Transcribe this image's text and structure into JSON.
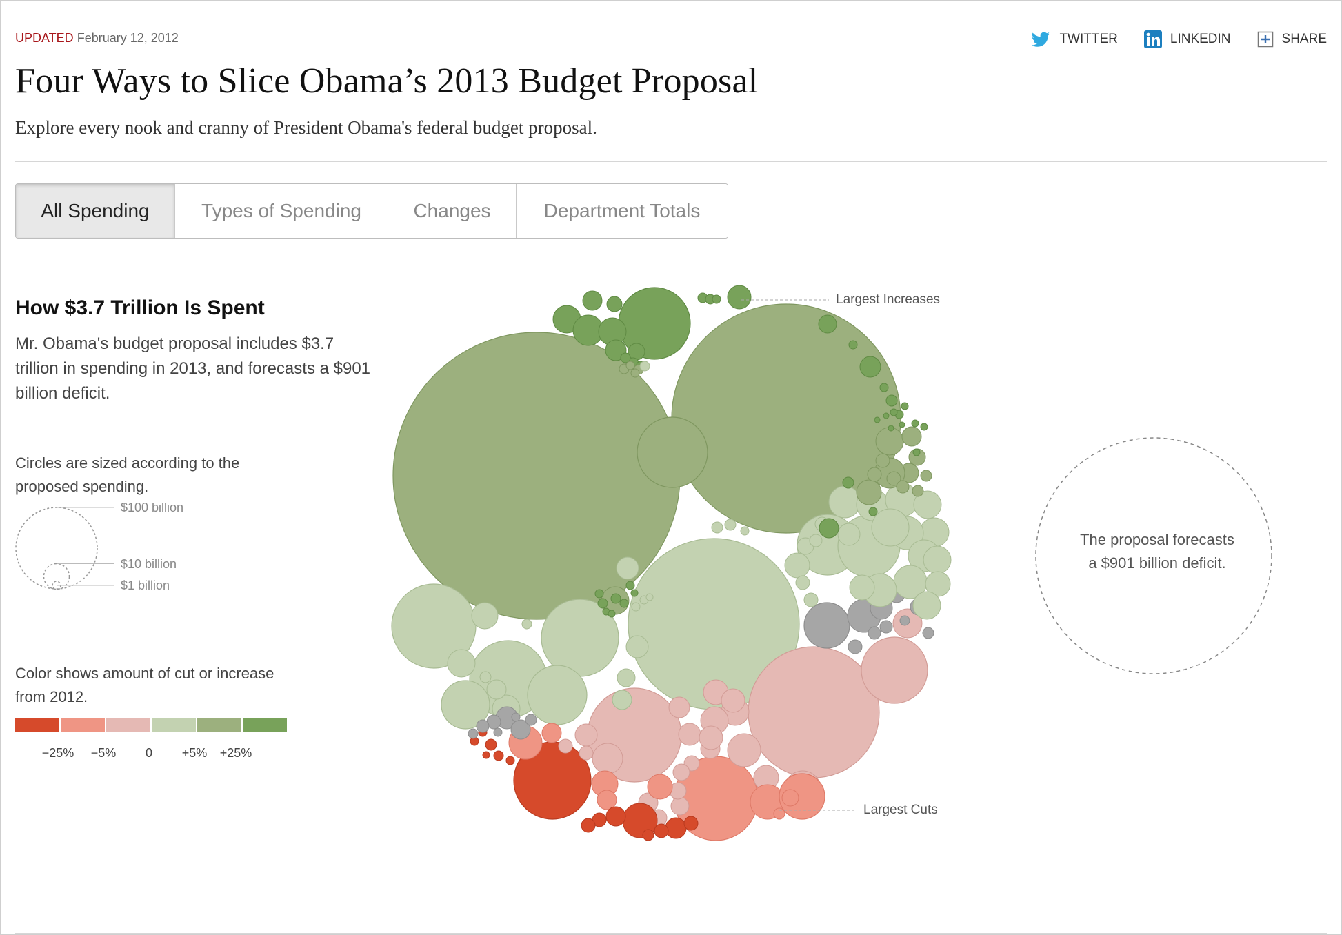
{
  "header": {
    "updated_label": "UPDATED",
    "updated_date": "February 12, 2012",
    "title": "Four Ways to Slice Obama’s 2013 Budget Proposal",
    "subtitle": "Explore every nook and cranny of President Obama's federal budget proposal."
  },
  "share": [
    {
      "label": "TWITTER",
      "icon": "twitter-icon"
    },
    {
      "label": "LINKEDIN",
      "icon": "linkedin-icon"
    },
    {
      "label": "SHARE",
      "icon": "plus-box-icon"
    }
  ],
  "tabs": [
    {
      "label": "All Spending",
      "active": true
    },
    {
      "label": "Types of Spending",
      "active": false
    },
    {
      "label": "Changes",
      "active": false
    },
    {
      "label": "Department Totals",
      "active": false
    }
  ],
  "sidebar": {
    "heading": "How $3.7 Trillion Is Spent",
    "description": "Mr. Obama's budget proposal includes $3.7 trillion in spending in 2013, and forecasts a $901 billion deficit.",
    "size_text": "Circles are sized according to the proposed spending.",
    "size_legend": [
      "$100 billion",
      "$10 billion",
      "$1 billion"
    ],
    "color_text": "Color shows amount of cut or increase from 2012.",
    "color_scale": [
      "#d64a2b",
      "#ef9584",
      "#e5b9b4",
      "#c3d2b1",
      "#9cb07e",
      "#78a25a"
    ],
    "color_ticks": [
      "−25%",
      "−5%",
      "0",
      "+5%",
      "+25%"
    ]
  },
  "annotations": {
    "increases": "Largest Increases",
    "cuts": "Largest Cuts",
    "deficit": "The proposal forecasts a $901 billion deficit."
  },
  "colors": {
    "dark_green": "#78a25a",
    "green": "#9cb07e",
    "light_green": "#c3d2b1",
    "gray": "#a6a6a6",
    "light_red": "#e5b9b4",
    "red": "#ef9584",
    "dark_red": "#d64a2b"
  }
}
